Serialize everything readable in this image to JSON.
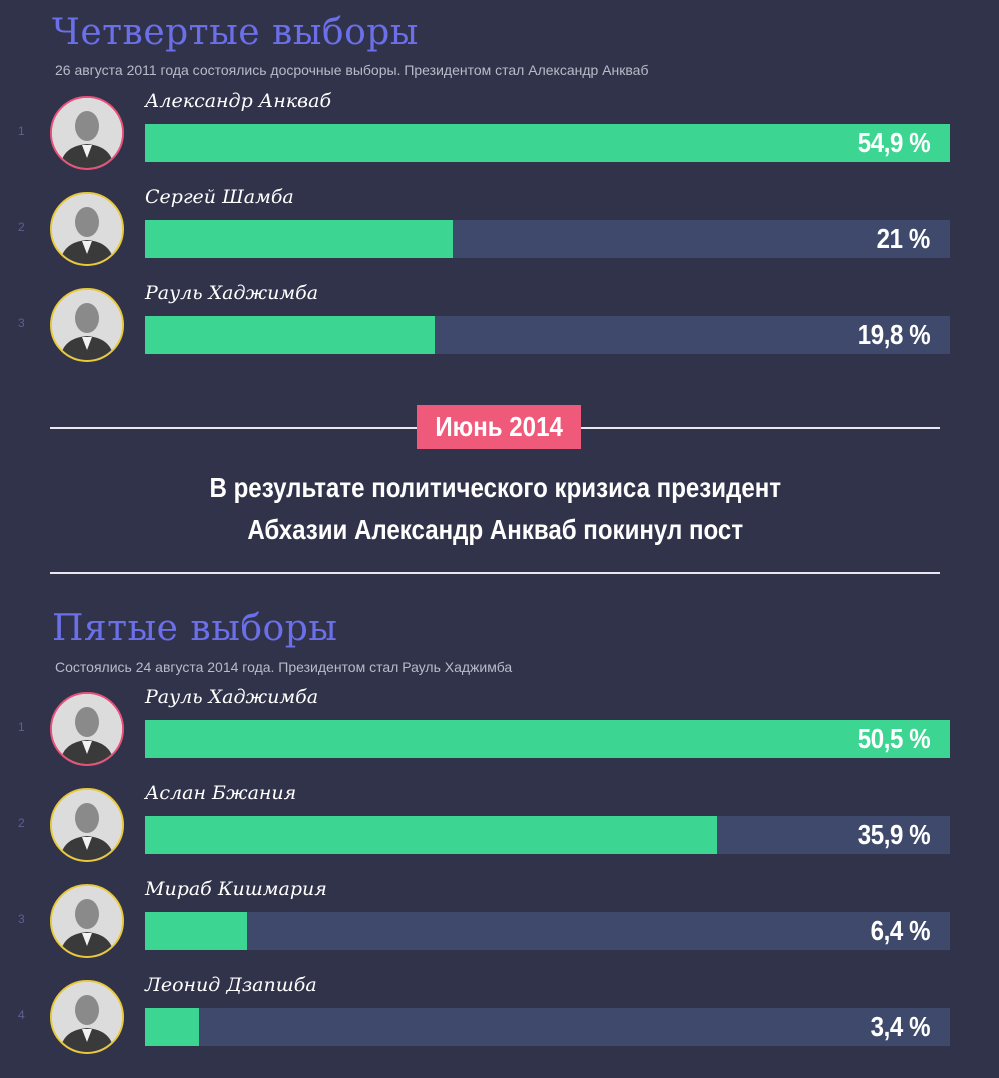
{
  "sections": [
    {
      "title": "Четвертые выборы",
      "subtitle": "26 августа 2011 года состоялись досрочные выборы. Президентом стал Александр Анкваб"
    },
    {
      "title": "Пятые выборы",
      "subtitle": "Состоялись 24 августа 2014 года. Президентом стал Рауль Хаджимба"
    }
  ],
  "event": {
    "date": "Июнь 2014",
    "line1": "В результате политического кризиса президент",
    "line2": "Абхазии Александр Анкваб покинул пост"
  },
  "colors": {
    "background": "#31334a",
    "bar_fill": "#3cd591",
    "bar_track": "#3f496b",
    "title": "#6b6fe8",
    "badge": "#f05a7a",
    "winner_ring": "#e8527a",
    "other_ring": "#e8c93a"
  },
  "chart_data": [
    {
      "type": "bar",
      "orientation": "horizontal",
      "title": "Четвертые выборы",
      "categories": [
        "Александр Анкваб",
        "Сергей Шамба",
        "Рауль Хаджимба"
      ],
      "ranks": [
        "1",
        "2",
        "3"
      ],
      "values": [
        54.9,
        21,
        19.8
      ],
      "labels": [
        "54,9 %",
        "21 %",
        "19,8 %"
      ],
      "xlim": [
        0,
        54.9
      ]
    },
    {
      "type": "bar",
      "orientation": "horizontal",
      "title": "Пятые выборы",
      "categories": [
        "Рауль Хаджимба",
        "Аслан Бжания",
        "Мираб Кишмария",
        "Леонид Дзапшба"
      ],
      "ranks": [
        "1",
        "2",
        "3",
        "4"
      ],
      "values": [
        50.5,
        35.9,
        6.4,
        3.4
      ],
      "labels": [
        "50,5 %",
        "35,9 %",
        "6,4 %",
        "3,4 %"
      ],
      "xlim": [
        0,
        50.5
      ]
    }
  ]
}
